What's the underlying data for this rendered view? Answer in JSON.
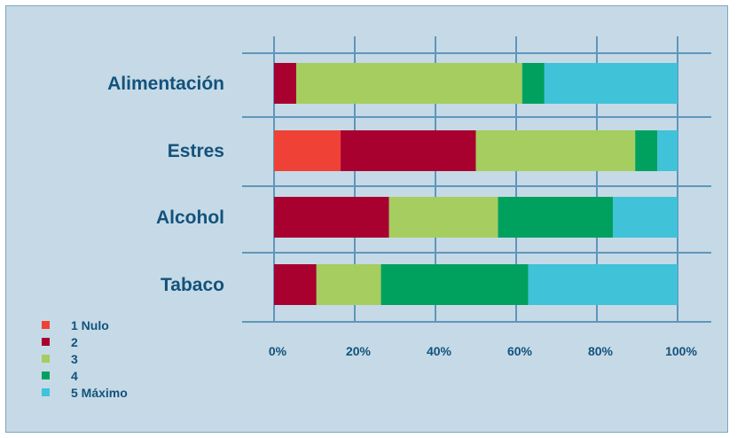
{
  "chart_data": {
    "type": "bar",
    "orientation": "horizontal",
    "stacked": true,
    "percent": true,
    "categories": [
      "Alimentación",
      "Estres",
      "Alcohol",
      "Tabaco"
    ],
    "series": [
      {
        "name": "1 Nulo",
        "color": "#ef4135",
        "values": [
          0,
          16.5,
          0,
          0
        ]
      },
      {
        "name": "2",
        "color": "#a8002f",
        "values": [
          5.5,
          33.5,
          28.5,
          10.5
        ]
      },
      {
        "name": "3",
        "color": "#a6cd5f",
        "values": [
          56,
          39.5,
          27,
          16
        ]
      },
      {
        "name": "4",
        "color": "#00a15e",
        "values": [
          5.5,
          5.5,
          28.5,
          36.5
        ]
      },
      {
        "name": "5 Máximo",
        "color": "#40c2d9",
        "values": [
          33,
          5,
          16,
          37
        ]
      }
    ],
    "x_ticks": [
      "0%",
      "20%",
      "40%",
      "60%",
      "80%",
      "100%"
    ],
    "xlim": [
      0,
      100
    ],
    "grid": true,
    "legend_position": "bottom-left"
  },
  "colors": {
    "background": "#c5dae6",
    "grid": "#5f96bb",
    "text": "#13527c"
  }
}
